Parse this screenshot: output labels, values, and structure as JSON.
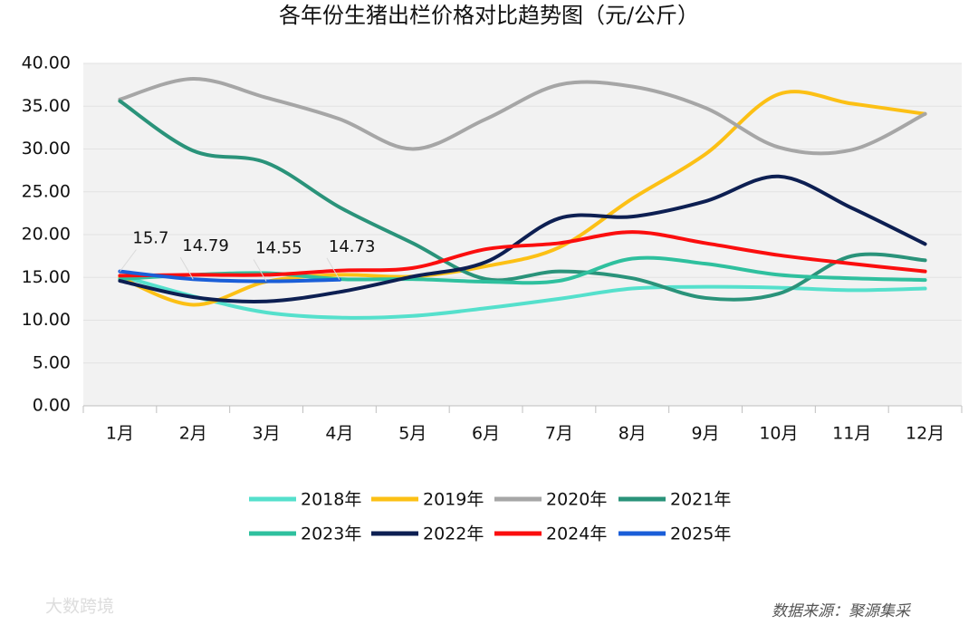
{
  "chart_data": {
    "type": "line",
    "title": "各年份生猪出栏价格对比趋势图（元/公斤）",
    "categories": [
      "1月",
      "2月",
      "3月",
      "4月",
      "5月",
      "6月",
      "7月",
      "8月",
      "9月",
      "10月",
      "11月",
      "12月"
    ],
    "series": [
      {
        "name": "2018年",
        "color": "#55e0cc",
        "values": [
          15.2,
          12.8,
          10.9,
          10.3,
          10.5,
          11.4,
          12.5,
          13.7,
          13.9,
          13.8,
          13.5,
          13.7
        ]
      },
      {
        "name": "2019年",
        "color": "#fcc015",
        "values": [
          15.0,
          11.8,
          14.5,
          15.3,
          15.1,
          16.3,
          18.5,
          24.2,
          29.4,
          36.4,
          35.3,
          34.1
        ]
      },
      {
        "name": "2020年",
        "color": "#a6a6a6",
        "values": [
          35.8,
          38.2,
          36.0,
          33.5,
          30.0,
          33.5,
          37.5,
          37.3,
          34.8,
          30.2,
          29.9,
          34.1
        ]
      },
      {
        "name": "2021年",
        "color": "#2a937a",
        "values": [
          35.6,
          29.8,
          28.4,
          23.2,
          19.0,
          14.8,
          15.7,
          14.9,
          12.6,
          13.1,
          17.5,
          17.0
        ]
      },
      {
        "name": "2023年",
        "color": "#2fc09e",
        "values": [
          14.8,
          15.3,
          15.5,
          14.8,
          14.8,
          14.5,
          14.6,
          17.2,
          16.6,
          15.3,
          14.9,
          14.7
        ]
      },
      {
        "name": "2022年",
        "color": "#0d1f52",
        "values": [
          14.6,
          12.7,
          12.2,
          13.3,
          15.1,
          16.8,
          21.9,
          22.1,
          23.9,
          26.8,
          23.1,
          18.9
        ]
      },
      {
        "name": "2024年",
        "color": "#fb0e0e",
        "values": [
          15.2,
          15.3,
          15.3,
          15.8,
          16.1,
          18.3,
          19.0,
          20.3,
          19.0,
          17.6,
          16.6,
          15.7
        ]
      },
      {
        "name": "2025年",
        "color": "#1a5ed8",
        "values": [
          15.7,
          14.79,
          14.55,
          14.73,
          null,
          null,
          null,
          null,
          null,
          null,
          null,
          null
        ],
        "data_labels": true
      }
    ],
    "ylim": [
      0,
      40
    ],
    "yticks": [
      {
        "value": 0,
        "label": "0.00"
      },
      {
        "value": 5,
        "label": "5.00"
      },
      {
        "value": 10,
        "label": "10.00"
      },
      {
        "value": 15,
        "label": "15.00"
      },
      {
        "value": 20,
        "label": "20.00"
      },
      {
        "value": 25,
        "label": "25.00"
      },
      {
        "value": 30,
        "label": "30.00"
      },
      {
        "value": 35,
        "label": "35.00"
      },
      {
        "value": 40,
        "label": "40.00"
      }
    ],
    "grid": true,
    "legend": "bottom",
    "source": "数据来源：聚源集采",
    "watermark": "大数跨境"
  }
}
